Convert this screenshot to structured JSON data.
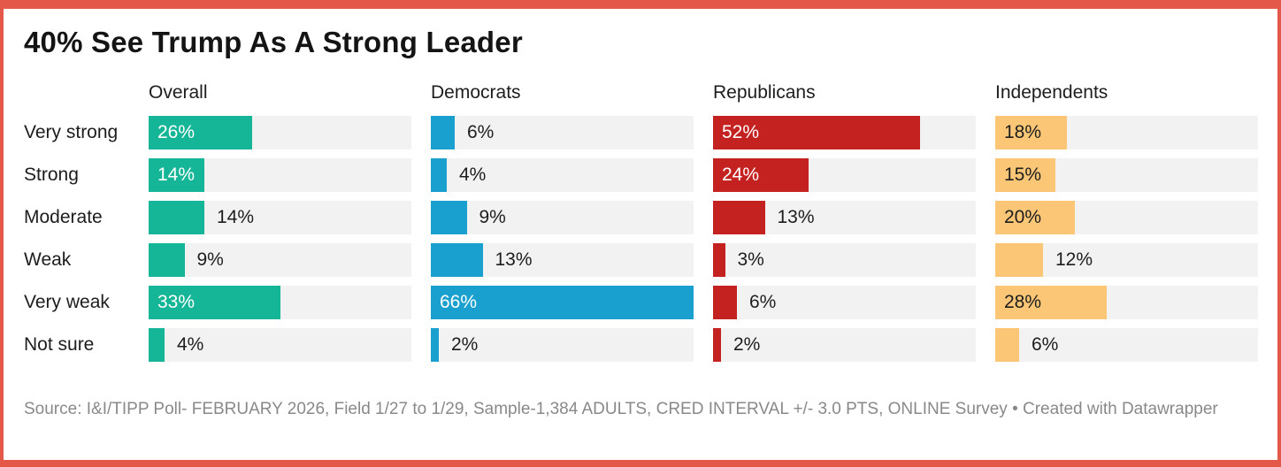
{
  "title": "40% See Trump As A Strong Leader",
  "source": "Source: I&I/TIPP Poll- FEBRUARY 2026, Field 1/27 to 1/29, Sample-1,384 ADULTS, CRED INTERVAL +/- 3.0 PTS, ONLINE Survey • Created with Datawrapper",
  "colors": {
    "frame_border": "#e4584a",
    "track": "#f2f2f2",
    "overall": "#15b597",
    "democrats": "#1aa0ce",
    "republicans": "#c42220",
    "independents": "#fbc776",
    "text_dark": "#1d1d1d",
    "source_gray": "#898989"
  },
  "chart_data": {
    "type": "bar",
    "orientation": "horizontal",
    "title": "40% See Trump As A Strong Leader",
    "categories": [
      "Very strong",
      "Strong",
      "Moderate",
      "Weak",
      "Very weak",
      "Not sure"
    ],
    "xmax": 66,
    "value_suffix": "%",
    "grid": false,
    "legend_position": "column-headers",
    "series": [
      {
        "name": "Overall",
        "color": "#15b597",
        "values": [
          26,
          14,
          14,
          9,
          33,
          4
        ],
        "label_inside": [
          true,
          true,
          false,
          false,
          true,
          false
        ],
        "inside_label_dark": false
      },
      {
        "name": "Democrats",
        "color": "#1aa0ce",
        "values": [
          6,
          4,
          9,
          13,
          66,
          2
        ],
        "label_inside": [
          false,
          false,
          false,
          false,
          true,
          false
        ],
        "inside_label_dark": false
      },
      {
        "name": "Republicans",
        "color": "#c42220",
        "values": [
          52,
          24,
          13,
          3,
          6,
          2
        ],
        "label_inside": [
          true,
          true,
          false,
          false,
          false,
          false
        ],
        "inside_label_dark": false
      },
      {
        "name": "Independents",
        "color": "#fbc776",
        "values": [
          18,
          15,
          20,
          12,
          28,
          6
        ],
        "label_inside": [
          true,
          true,
          true,
          false,
          true,
          false
        ],
        "inside_label_dark": true
      }
    ]
  }
}
